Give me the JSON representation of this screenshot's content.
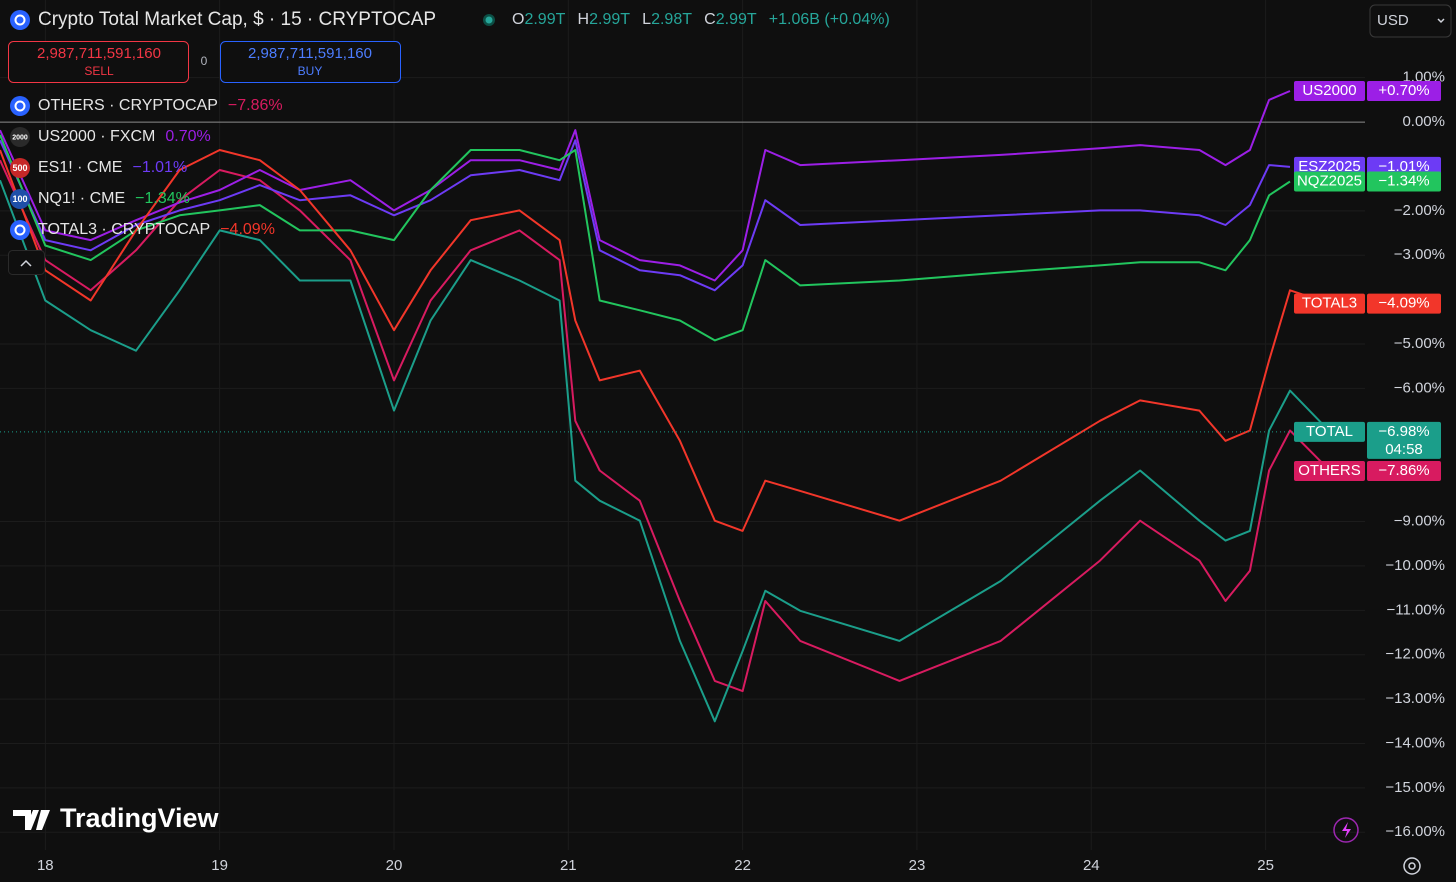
{
  "header": {
    "title": "Crypto Total Market Cap, $ · 15 · CRYPTOCAP",
    "ohlc": [
      {
        "label": "O",
        "value": "2.99T"
      },
      {
        "label": "H",
        "value": "2.99T"
      },
      {
        "label": "L",
        "value": "2.98T"
      },
      {
        "label": "C",
        "value": "2.99T"
      }
    ],
    "change": "+1.06B (+0.04%)",
    "currency": "USD"
  },
  "trade": {
    "sell_price": "2,987,711,591,160",
    "sell": "SELL",
    "spread": "0",
    "buy_price": "2,987,711,591,160",
    "buy": "BUY"
  },
  "watermark": "TradingView",
  "chart_data": {
    "type": "line",
    "x": [
      17.74,
      18.0,
      18.26,
      18.52,
      18.77,
      19.0,
      19.23,
      19.46,
      19.75,
      20.0,
      20.21,
      20.44,
      20.72,
      20.95,
      21.04,
      21.18,
      21.41,
      21.64,
      21.84,
      22.0,
      22.13,
      22.33,
      22.9,
      23.48,
      24.05,
      24.28,
      24.62,
      24.77,
      24.91,
      25.02,
      25.14,
      25.37
    ],
    "xlim": [
      17.74,
      25.57
    ],
    "xticks": [
      18,
      19,
      20,
      21,
      22,
      23,
      24,
      25
    ],
    "ylim": [
      -16.4,
      2.75
    ],
    "yticks": [
      {
        "value": 1,
        "label": "1.00%"
      },
      {
        "value": 0,
        "label": "0.00%"
      },
      {
        "value": -2,
        "label": "−2.00%"
      },
      {
        "value": -3,
        "label": "−3.00%"
      },
      {
        "value": -5,
        "label": "−5.00%"
      },
      {
        "value": -6,
        "label": "−6.00%"
      },
      {
        "value": -9,
        "label": "−9.00%"
      },
      {
        "value": -10,
        "label": "−10.00%"
      },
      {
        "value": -11,
        "label": "−11.00%"
      },
      {
        "value": -12,
        "label": "−12.00%"
      },
      {
        "value": -13,
        "label": "−13.00%"
      },
      {
        "value": -14,
        "label": "−14.00%"
      },
      {
        "value": -15,
        "label": "−15.00%"
      },
      {
        "value": -16,
        "label": "−16.00%"
      }
    ],
    "grid": true,
    "series": [
      {
        "name": "OTHERS",
        "symbol": "OTHERS · CRYPTOCAP",
        "legend_change": "−7.86%",
        "last_label": "−7.86%",
        "color": "#d81b60",
        "icon_color": "#2962ff",
        "values": [
          -0.86,
          -3.11,
          -3.79,
          -2.89,
          -1.76,
          -1.08,
          -1.31,
          -1.99,
          -3.11,
          -5.82,
          -4.02,
          -2.89,
          -2.44,
          -3.11,
          -6.73,
          -7.85,
          -8.53,
          -10.79,
          -12.59,
          -12.82,
          -10.79,
          -11.69,
          -12.59,
          -11.69,
          -9.88,
          -8.98,
          -9.88,
          -10.79,
          -10.11,
          -7.85,
          -6.95,
          -7.86
        ]
      },
      {
        "name": "US2000",
        "symbol": "US2000 · FXCM",
        "legend_change": "0.70%",
        "last_label": "+0.70%",
        "color": "#9c1fe6",
        "icon_color": "#2a2a2a",
        "badge": "2000",
        "values": [
          -0.18,
          -2.44,
          -2.66,
          -2.21,
          -1.81,
          -1.53,
          -1.08,
          -1.53,
          -1.31,
          -1.99,
          -1.53,
          -0.86,
          -0.86,
          -1.08,
          -0.18,
          -2.66,
          -3.11,
          -3.23,
          -3.57,
          -2.89,
          -0.63,
          -0.97,
          -0.86,
          -0.74,
          -0.59,
          -0.52,
          -0.63,
          -0.97,
          -0.63,
          0.5,
          0.7,
          null
        ]
      },
      {
        "name": "ESZ2025",
        "symbol": "ES1! · CME",
        "legend_change": "−1.01%",
        "last_label": "−1.01%",
        "color": "#6d3bf5",
        "icon_color": "#c62828",
        "badge": "500",
        "values": [
          -0.41,
          -2.66,
          -2.89,
          -2.32,
          -1.99,
          -1.76,
          -1.42,
          -1.76,
          -1.65,
          -2.1,
          -1.76,
          -1.2,
          -1.08,
          -1.31,
          -0.41,
          -2.89,
          -3.34,
          -3.45,
          -3.79,
          -3.23,
          -1.76,
          -2.32,
          -2.21,
          -2.1,
          -1.99,
          -1.99,
          -2.1,
          -2.32,
          -1.87,
          -0.97,
          -1.01,
          null
        ]
      },
      {
        "name": "NQZ2025",
        "symbol": "NQ1! · CME",
        "legend_change": "−1.34%",
        "last_label": "−1.34%",
        "color": "#22c55e",
        "icon_color": "#1e4fa8",
        "badge": "100",
        "values": [
          -0.29,
          -2.78,
          -3.11,
          -2.44,
          -2.1,
          -1.99,
          -1.87,
          -2.44,
          -2.44,
          -2.66,
          -1.53,
          -0.63,
          -0.63,
          -0.86,
          -0.63,
          -4.02,
          -4.24,
          -4.47,
          -4.92,
          -4.69,
          -3.11,
          -3.68,
          -3.57,
          -3.39,
          -3.23,
          -3.16,
          -3.16,
          -3.34,
          -2.66,
          -1.65,
          -1.34,
          null
        ]
      },
      {
        "name": "TOTAL3",
        "symbol": "TOTAL3 · CRYPTOCAP",
        "legend_change": "−4.09%",
        "last_label": "−4.09%",
        "color": "#f2362a",
        "icon_color": "#2962ff",
        "values": [
          -0.63,
          -3.34,
          -4.02,
          -2.44,
          -1.08,
          -0.63,
          -0.86,
          -1.53,
          -2.89,
          -4.69,
          -3.34,
          -2.21,
          -1.99,
          -2.66,
          -4.47,
          -5.82,
          -5.6,
          -7.18,
          -8.98,
          -9.21,
          -8.08,
          -8.31,
          -8.98,
          -8.08,
          -6.73,
          -6.27,
          -6.5,
          -7.18,
          -6.95,
          -5.37,
          -3.79,
          -4.09
        ]
      },
      {
        "name": "TOTAL",
        "last_label": "−6.98%",
        "countdown": "04:58",
        "color": "#1b9e8a",
        "values": [
          -1.31,
          -4.02,
          -4.69,
          -5.15,
          -3.79,
          -2.44,
          -2.66,
          -3.57,
          -3.57,
          -6.5,
          -4.47,
          -3.11,
          -3.57,
          -4.02,
          -8.08,
          -8.53,
          -8.98,
          -11.69,
          -13.5,
          -11.92,
          -10.56,
          -11.01,
          -11.69,
          -10.34,
          -8.53,
          -7.85,
          -8.98,
          -9.43,
          -9.21,
          -6.95,
          -6.05,
          -6.98
        ]
      }
    ]
  }
}
